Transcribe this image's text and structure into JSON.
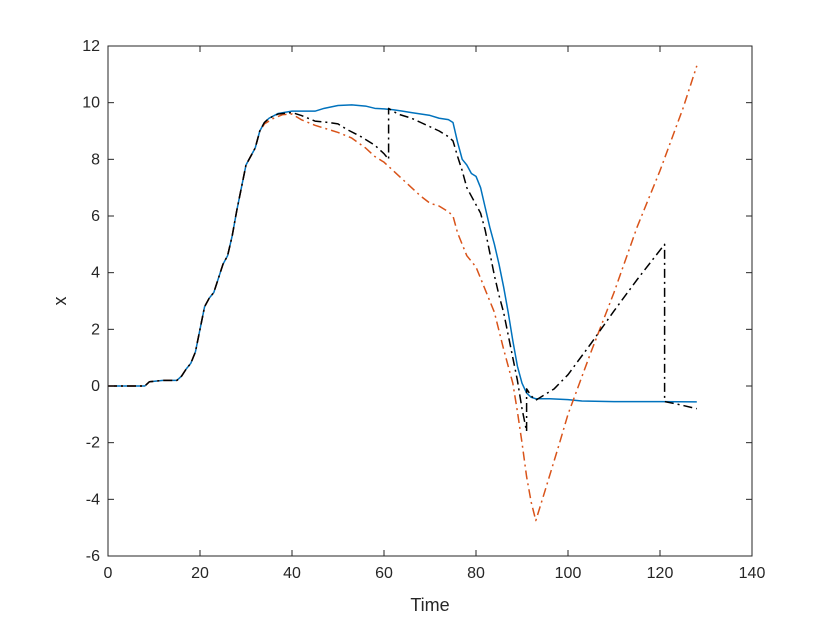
{
  "chart_data": {
    "type": "line",
    "title": "",
    "xlabel": "Time",
    "ylabel": "x",
    "xlim": [
      0,
      140
    ],
    "ylim": [
      -6,
      12
    ],
    "xticks": [
      0,
      20,
      40,
      60,
      80,
      100,
      120,
      140
    ],
    "yticks": [
      -6,
      -4,
      -2,
      0,
      2,
      4,
      6,
      8,
      10,
      12
    ],
    "grid": false,
    "legend": "none",
    "series": [
      {
        "color": "#0072BD",
        "style": "solid",
        "points": [
          [
            0,
            0
          ],
          [
            4,
            0
          ],
          [
            8,
            0
          ],
          [
            9,
            0.15
          ],
          [
            12,
            0.2
          ],
          [
            15,
            0.2
          ],
          [
            16,
            0.35
          ],
          [
            17,
            0.6
          ],
          [
            18,
            0.8
          ],
          [
            19,
            1.2
          ],
          [
            20,
            2
          ],
          [
            21,
            2.8
          ],
          [
            22,
            3.1
          ],
          [
            23,
            3.3
          ],
          [
            24,
            3.8
          ],
          [
            25,
            4.3
          ],
          [
            26,
            4.6
          ],
          [
            27,
            5.3
          ],
          [
            28,
            6.2
          ],
          [
            29,
            7
          ],
          [
            30,
            7.8
          ],
          [
            31,
            8.1
          ],
          [
            32,
            8.4
          ],
          [
            33,
            9
          ],
          [
            34,
            9.3
          ],
          [
            35,
            9.45
          ],
          [
            37,
            9.62
          ],
          [
            40,
            9.7
          ],
          [
            45,
            9.7
          ],
          [
            47,
            9.8
          ],
          [
            50,
            9.9
          ],
          [
            53,
            9.92
          ],
          [
            56,
            9.88
          ],
          [
            58,
            9.8
          ],
          [
            60,
            9.78
          ],
          [
            62,
            9.75
          ],
          [
            64,
            9.7
          ],
          [
            66,
            9.65
          ],
          [
            68,
            9.6
          ],
          [
            70,
            9.55
          ],
          [
            72,
            9.45
          ],
          [
            74,
            9.4
          ],
          [
            75,
            9.3
          ],
          [
            76,
            8.6
          ],
          [
            77,
            8
          ],
          [
            78,
            7.8
          ],
          [
            79,
            7.5
          ],
          [
            80,
            7.4
          ],
          [
            81,
            7
          ],
          [
            82,
            6.3
          ],
          [
            83,
            5.6
          ],
          [
            84,
            5
          ],
          [
            85,
            4.3
          ],
          [
            86,
            3.5
          ],
          [
            87,
            2.6
          ],
          [
            88,
            1.6
          ],
          [
            89,
            0.7
          ],
          [
            90,
            0.1
          ],
          [
            91,
            -0.25
          ],
          [
            92,
            -0.4
          ],
          [
            93,
            -0.45
          ],
          [
            96,
            -0.45
          ],
          [
            100,
            -0.48
          ],
          [
            103,
            -0.53
          ],
          [
            110,
            -0.55
          ],
          [
            120,
            -0.55
          ],
          [
            128,
            -0.56
          ]
        ]
      },
      {
        "color": "#D95319",
        "style": "dash-dot",
        "points": [
          [
            0,
            0
          ],
          [
            4,
            0
          ],
          [
            8,
            0
          ],
          [
            9,
            0.15
          ],
          [
            12,
            0.2
          ],
          [
            15,
            0.2
          ],
          [
            16,
            0.35
          ],
          [
            17,
            0.6
          ],
          [
            18,
            0.8
          ],
          [
            19,
            1.2
          ],
          [
            20,
            2
          ],
          [
            21,
            2.8
          ],
          [
            22,
            3.1
          ],
          [
            23,
            3.3
          ],
          [
            24,
            3.8
          ],
          [
            25,
            4.3
          ],
          [
            26,
            4.6
          ],
          [
            27,
            5.3
          ],
          [
            28,
            6.2
          ],
          [
            29,
            7
          ],
          [
            30,
            7.8
          ],
          [
            31,
            8.1
          ],
          [
            32,
            8.4
          ],
          [
            33,
            9
          ],
          [
            34,
            9.25
          ],
          [
            36,
            9.45
          ],
          [
            38,
            9.58
          ],
          [
            40,
            9.6
          ],
          [
            42,
            9.4
          ],
          [
            45,
            9.2
          ],
          [
            48,
            9.05
          ],
          [
            50,
            8.95
          ],
          [
            53,
            8.75
          ],
          [
            56,
            8.4
          ],
          [
            58,
            8.1
          ],
          [
            60,
            7.9
          ],
          [
            62,
            7.6
          ],
          [
            64,
            7.3
          ],
          [
            66,
            7
          ],
          [
            68,
            6.7
          ],
          [
            70,
            6.45
          ],
          [
            72,
            6.35
          ],
          [
            74,
            6.15
          ],
          [
            75,
            6
          ],
          [
            76,
            5.4
          ],
          [
            78,
            4.6
          ],
          [
            80,
            4.2
          ],
          [
            82,
            3.4
          ],
          [
            84,
            2.6
          ],
          [
            86,
            1.3
          ],
          [
            88,
            0.1
          ],
          [
            89,
            -0.9
          ],
          [
            90,
            -2
          ],
          [
            91,
            -3.2
          ],
          [
            92,
            -4.1
          ],
          [
            93,
            -4.75
          ],
          [
            95,
            -3.7
          ],
          [
            98,
            -2.1
          ],
          [
            100,
            -1
          ],
          [
            105,
            1.2
          ],
          [
            110,
            3.3
          ],
          [
            115,
            5.6
          ],
          [
            120,
            7.6
          ],
          [
            125,
            9.8
          ],
          [
            128,
            11.3
          ]
        ]
      },
      {
        "color": "#000000",
        "style": "dash-dot",
        "points": [
          [
            0,
            0
          ],
          [
            4,
            0
          ],
          [
            8,
            0
          ],
          [
            9,
            0.15
          ],
          [
            12,
            0.2
          ],
          [
            15,
            0.2
          ],
          [
            16,
            0.35
          ],
          [
            17,
            0.6
          ],
          [
            18,
            0.8
          ],
          [
            19,
            1.2
          ],
          [
            20,
            2
          ],
          [
            21,
            2.8
          ],
          [
            22,
            3.1
          ],
          [
            23,
            3.3
          ],
          [
            24,
            3.8
          ],
          [
            25,
            4.3
          ],
          [
            26,
            4.6
          ],
          [
            27,
            5.3
          ],
          [
            28,
            6.2
          ],
          [
            29,
            7
          ],
          [
            30,
            7.8
          ],
          [
            31,
            8.1
          ],
          [
            32,
            8.4
          ],
          [
            33,
            9
          ],
          [
            34,
            9.3
          ],
          [
            35,
            9.45
          ],
          [
            37,
            9.6
          ],
          [
            40,
            9.65
          ],
          [
            42,
            9.55
          ],
          [
            45,
            9.35
          ],
          [
            48,
            9.3
          ],
          [
            50,
            9.25
          ],
          [
            52,
            9.05
          ],
          [
            55,
            8.8
          ],
          [
            58,
            8.5
          ],
          [
            60,
            8.2
          ],
          [
            61,
            8
          ],
          [
            61,
            9.8
          ],
          [
            63,
            9.6
          ],
          [
            66,
            9.45
          ],
          [
            68,
            9.3
          ],
          [
            70,
            9.15
          ],
          [
            72,
            9
          ],
          [
            74,
            8.8
          ],
          [
            75,
            8.65
          ],
          [
            76,
            8.1
          ],
          [
            77,
            7.6
          ],
          [
            78,
            7
          ],
          [
            79,
            6.7
          ],
          [
            80,
            6.4
          ],
          [
            81,
            6.1
          ],
          [
            82,
            5.5
          ],
          [
            83,
            4.7
          ],
          [
            84,
            3.9
          ],
          [
            85,
            3.2
          ],
          [
            86,
            2.6
          ],
          [
            87,
            1.8
          ],
          [
            88,
            1
          ],
          [
            89,
            0.2
          ],
          [
            90,
            -0.8
          ],
          [
            91,
            -1.6
          ],
          [
            91,
            -0.1
          ],
          [
            92,
            -0.35
          ],
          [
            93,
            -0.5
          ],
          [
            97,
            -0.1
          ],
          [
            100,
            0.4
          ],
          [
            105,
            1.5
          ],
          [
            110,
            2.65
          ],
          [
            115,
            3.75
          ],
          [
            121,
            5
          ],
          [
            121,
            -0.55
          ],
          [
            124,
            -0.65
          ],
          [
            128,
            -0.8
          ]
        ]
      }
    ]
  }
}
